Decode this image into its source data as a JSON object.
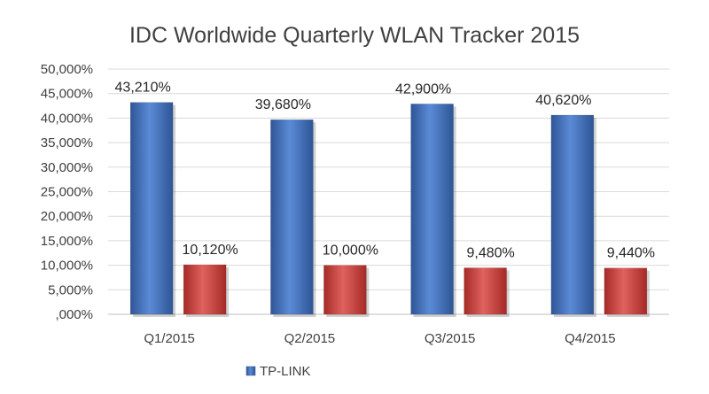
{
  "chart_data": {
    "type": "bar",
    "title": "IDC Worldwide Quarterly WLAN Tracker 2015",
    "categories": [
      "Q1/2015",
      "Q2/2015",
      "Q3/2015",
      "Q4/2015"
    ],
    "series": [
      {
        "name": "TP-LINK",
        "values": [
          43.21,
          39.68,
          42.9,
          40.62
        ],
        "labels": [
          "43,210%",
          "39,680%",
          "42,900%",
          "40,620%"
        ],
        "color": "#4472C4"
      },
      {
        "values": [
          10.12,
          10.0,
          9.48,
          9.44
        ],
        "labels": [
          "10,120%",
          "10,000%",
          "9,480%",
          "9,440%"
        ],
        "color": "#C0504D"
      }
    ],
    "ylim": [
      0,
      50
    ],
    "yticks": [
      0,
      5,
      10,
      15,
      20,
      25,
      30,
      35,
      40,
      45,
      50
    ],
    "ytick_labels": [
      ",000%",
      "5,000%",
      "10,000%",
      "15,000%",
      "20,000%",
      "25,000%",
      "30,000%",
      "35,000%",
      "40,000%",
      "45,000%",
      "50,000%"
    ],
    "xlabel": "",
    "ylabel": "",
    "grid": true,
    "legend_position": "bottom-left"
  }
}
